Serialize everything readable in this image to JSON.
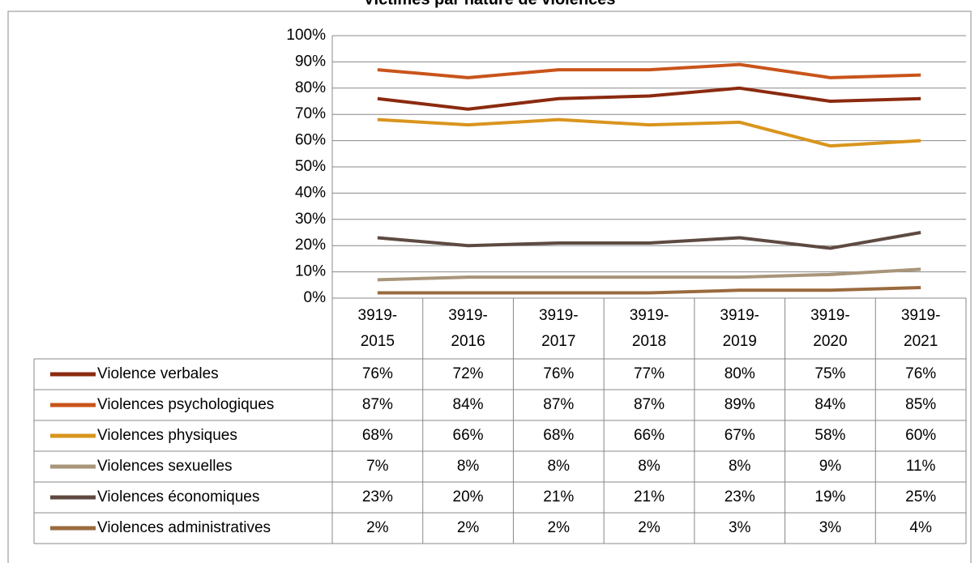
{
  "chart_data": {
    "type": "line",
    "title": "Victimes par nature de violences",
    "categories": [
      "3919-2015",
      "3919-2016",
      "3919-2017",
      "3919-2018",
      "3919-2019",
      "3919-2020",
      "3919-2021"
    ],
    "ylim": [
      0,
      100
    ],
    "yticks": [
      {
        "value": 0,
        "label": "0%"
      },
      {
        "value": 10,
        "label": "10%"
      },
      {
        "value": 20,
        "label": "20%"
      },
      {
        "value": 30,
        "label": "30%"
      },
      {
        "value": 40,
        "label": "40%"
      },
      {
        "value": 50,
        "label": "50%"
      },
      {
        "value": 60,
        "label": "60%"
      },
      {
        "value": 70,
        "label": "70%"
      },
      {
        "value": 80,
        "label": "80%"
      },
      {
        "value": 90,
        "label": "90%"
      },
      {
        "value": 100,
        "label": "100%"
      }
    ],
    "grid": true,
    "series": [
      {
        "name": "Violence verbales",
        "color": "#8b2a0f",
        "values": [
          76,
          72,
          76,
          77,
          80,
          75,
          76
        ],
        "value_labels": [
          "76%",
          "72%",
          "76%",
          "77%",
          "80%",
          "75%",
          "76%"
        ]
      },
      {
        "name": "Violences psychologiques",
        "color": "#c9541a",
        "values": [
          87,
          84,
          87,
          87,
          89,
          84,
          85
        ],
        "value_labels": [
          "87%",
          "84%",
          "87%",
          "87%",
          "89%",
          "84%",
          "85%"
        ]
      },
      {
        "name": "Violences physiques",
        "color": "#d9951e",
        "values": [
          68,
          66,
          68,
          66,
          67,
          58,
          60
        ],
        "value_labels": [
          "68%",
          "66%",
          "68%",
          "66%",
          "67%",
          "58%",
          "60%"
        ]
      },
      {
        "name": "Violences sexuelles",
        "color": "#a8957a",
        "values": [
          7,
          8,
          8,
          8,
          8,
          9,
          11
        ],
        "value_labels": [
          "7%",
          "8%",
          "8%",
          "8%",
          "8%",
          "9%",
          "11%"
        ]
      },
      {
        "name": "Violences économiques",
        "color": "#5e4a42",
        "values": [
          23,
          20,
          21,
          21,
          23,
          19,
          25
        ],
        "value_labels": [
          "23%",
          "20%",
          "21%",
          "21%",
          "23%",
          "19%",
          "25%"
        ]
      },
      {
        "name": "Violences administratives",
        "color": "#9a6a3e",
        "values": [
          2,
          2,
          2,
          2,
          3,
          3,
          4
        ],
        "value_labels": [
          "2%",
          "2%",
          "2%",
          "2%",
          "3%",
          "3%",
          "4%"
        ]
      }
    ]
  }
}
